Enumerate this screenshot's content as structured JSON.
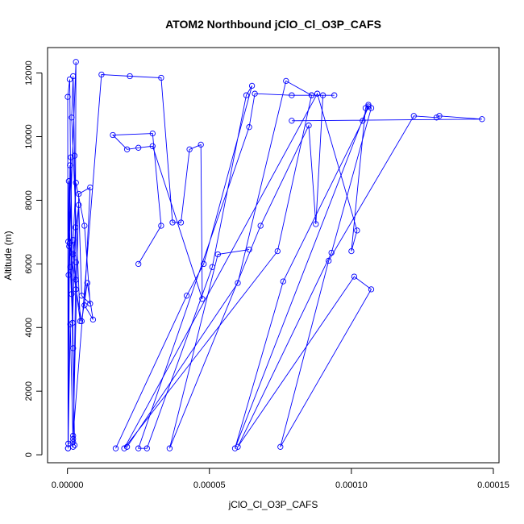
{
  "chart_data": {
    "type": "line",
    "title": "ATOM2 Northbound jClO_Cl_O3P_CAFS",
    "xlabel": "jClO_Cl_O3P_CAFS",
    "ylabel": "Altitude (m)",
    "xlim": [
      -7e-06,
      0.000152
    ],
    "ylim": [
      -250,
      12800
    ],
    "xticks": [
      0,
      5e-05,
      0.0001,
      0.00015
    ],
    "xtick_labels": [
      "0.00000",
      "0.00005",
      "0.00010",
      "0.00015"
    ],
    "yticks": [
      0,
      2000,
      4000,
      6000,
      8000,
      10000,
      12000
    ],
    "ytick_labels": [
      "0",
      "2000",
      "4000",
      "6000",
      "8000",
      "10000",
      "12000"
    ],
    "grid": false,
    "legend": "none",
    "series_color": "#0000ff",
    "series": [
      {
        "x": [
          2e-07,
          1e-06,
          2e-06,
          3e-06,
          2.5e-06,
          2e-06,
          1.5e-06,
          4.5e-06,
          8e-07,
          6e-07,
          3e-06,
          2.8e-06,
          1.8e-06,
          1e-06,
          5e-07,
          3e-07,
          1.2e-06,
          2e-06,
          2.5e-06,
          1.5e-06,
          8e-07,
          1e-07,
          2e-07,
          4e-07,
          9e-07,
          3e-07,
          2e-06
        ],
        "y": [
          200,
          4100,
          250,
          6050,
          9400,
          11900,
          10600,
          4200,
          6650,
          6550,
          12350,
          7150,
          4150,
          5900,
          8600,
          6700,
          9350,
          3350,
          300,
          5050,
          11800,
          11250,
          200,
          5650,
          9100,
          350,
          400
        ]
      },
      {
        "x": [
          2e-06,
          4e-06,
          8e-06,
          6e-06,
          9e-06,
          7e-06,
          5e-06,
          3e-06,
          2e-06,
          3e-06,
          6e-06,
          8e-06,
          5e-06,
          4e-06,
          2e-06,
          3e-06
        ],
        "y": [
          500,
          8200,
          8400,
          4700,
          4250,
          5400,
          4200,
          5200,
          6750,
          8550,
          7200,
          4750,
          5000,
          7850,
          6300,
          5500
        ]
      },
      {
        "x": [
          2e-06,
          1.2e-05,
          2.2e-05,
          3.3e-05,
          3.7e-05,
          4e-05,
          4.3e-05,
          4.7e-05,
          4.75e-05,
          3e-05,
          2.5e-05,
          2.1e-05,
          1.6e-05,
          3e-05,
          3.3e-05,
          2.5e-05
        ],
        "y": [
          600,
          11950,
          11900,
          11850,
          7300,
          7300,
          9600,
          9750,
          4900,
          9700,
          9650,
          9600,
          10050,
          10100,
          7200,
          6000
        ]
      },
      {
        "x": [
          1.7e-05,
          4.2e-05,
          4.8e-05,
          6.5e-05,
          6.3e-05,
          5.1e-05,
          2.8e-05,
          2.5e-05,
          6.4e-05,
          6.6e-05,
          7.9e-05,
          8.6e-05,
          9.4e-05,
          9e-05,
          8.75e-05,
          8.5e-05,
          6.8e-05,
          3.6e-05,
          5.3e-05,
          6.4e-05
        ],
        "y": [
          200,
          5000,
          6000,
          11600,
          11300,
          5900,
          200,
          200,
          10300,
          11350,
          11300,
          11300,
          11300,
          11300,
          7250,
          10350,
          7200,
          200,
          6300,
          6450
        ]
      },
      {
        "x": [
          2.1e-05,
          6e-05,
          7.7e-05,
          8.6e-05,
          7.4e-05,
          2e-05,
          8.8e-05,
          0.000102,
          0.0001,
          0.000105,
          0.000106,
          5.9e-05,
          7.6e-05,
          0.000104,
          0.000106,
          0.000107,
          9.3e-05,
          6e-05,
          0.000101,
          0.000107,
          7.5e-05,
          9.2e-05,
          0.000122,
          0.00013,
          0.000131,
          0.000146,
          7.9e-05
        ],
        "y": [
          250,
          5400,
          11750,
          11300,
          6400,
          200,
          11350,
          7050,
          6400,
          10900,
          11000,
          200,
          5450,
          10500,
          10950,
          10900,
          6350,
          250,
          5600,
          5200,
          250,
          6100,
          10650,
          10600,
          10650,
          10550,
          10500
        ]
      }
    ]
  }
}
